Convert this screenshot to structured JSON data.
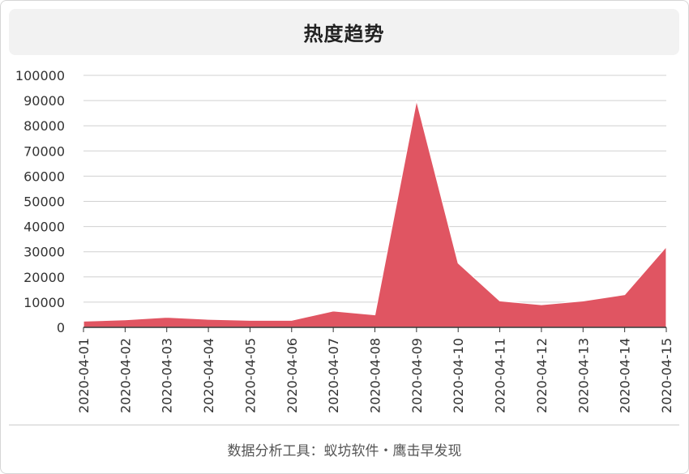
{
  "chart_data": {
    "type": "area",
    "title": "热度趋势",
    "categories": [
      "2020-04-01",
      "2020-04-02",
      "2020-04-03",
      "2020-04-04",
      "2020-04-05",
      "2020-04-06",
      "2020-04-07",
      "2020-04-08",
      "2020-04-09",
      "2020-04-10",
      "2020-04-11",
      "2020-04-12",
      "2020-04-13",
      "2020-04-14",
      "2020-04-15"
    ],
    "series": [
      {
        "values": [
          2500,
          3000,
          4000,
          3200,
          2800,
          2800,
          6500,
          5000,
          90000,
          25500,
          10500,
          9000,
          10500,
          13000,
          32000
        ],
        "color": "#e05562"
      }
    ],
    "ylim": [
      0,
      100000
    ],
    "yticks": [
      0,
      10000,
      20000,
      30000,
      40000,
      50000,
      60000,
      70000,
      80000,
      90000,
      100000
    ],
    "grid": true,
    "legend": "none"
  },
  "footer": "数据分析工具：蚁坊软件・鹰击早发现"
}
